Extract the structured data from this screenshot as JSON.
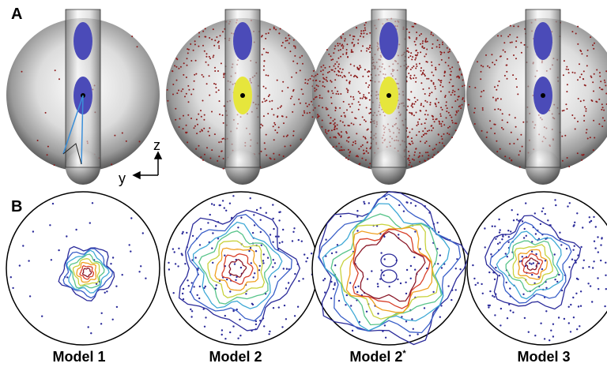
{
  "panel_a": {
    "label": "A",
    "axis_z": "z",
    "axis_y": "y"
  },
  "panel_b": {
    "label": "B"
  },
  "models": [
    {
      "label": "Model 1"
    },
    {
      "label": "Model 2"
    },
    {
      "label": "Model 2",
      "superscript": "*"
    },
    {
      "label": "Model 3"
    }
  ]
}
